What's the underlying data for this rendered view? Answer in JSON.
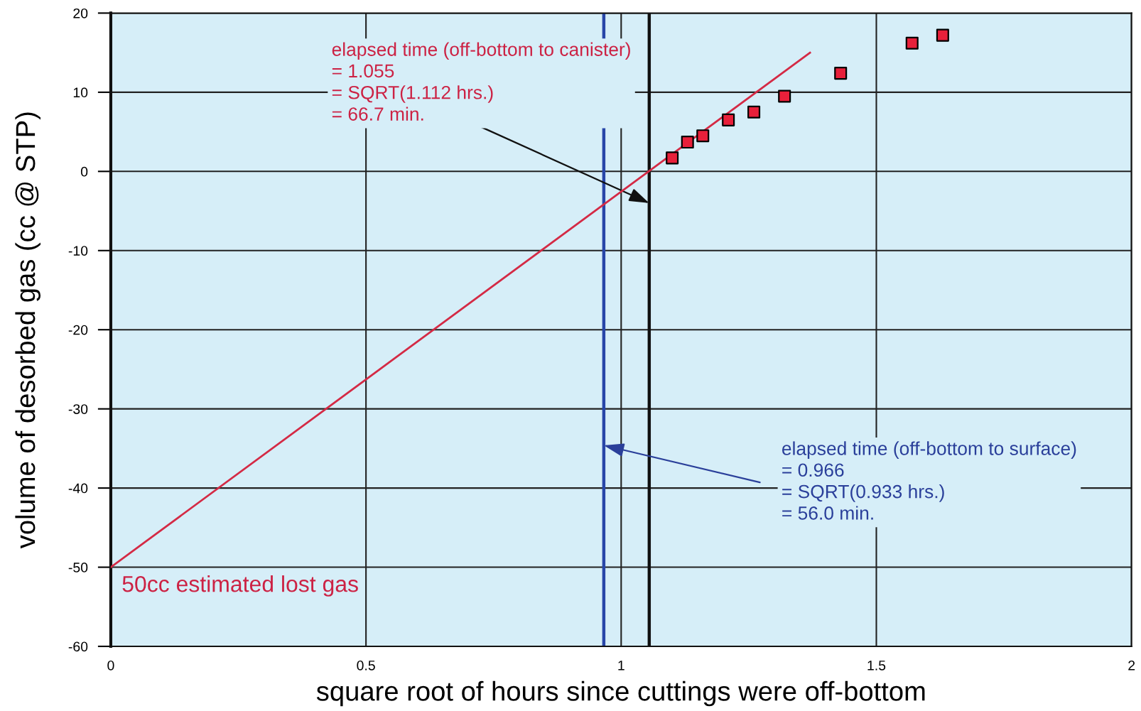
{
  "chart_data": {
    "type": "scatter",
    "xlabel": "square root of hours since cuttings were off-bottom",
    "ylabel": "volume of desorbed gas (cc @ STP)",
    "xlim": [
      0,
      2
    ],
    "ylim": [
      -60,
      20
    ],
    "xticks": [
      0,
      0.5,
      1,
      1.5,
      2
    ],
    "yticks": [
      -60,
      -50,
      -40,
      -30,
      -20,
      -10,
      0,
      10,
      20
    ],
    "grid": true,
    "line_style": "solid",
    "series": [
      {
        "color": "#e8203a",
        "marker": "square",
        "x": [
          1.1,
          1.13,
          1.16,
          1.21,
          1.26,
          1.32,
          1.43,
          1.57,
          1.63
        ],
        "values": [
          1.7,
          3.7,
          4.5,
          6.5,
          7.5,
          9.5,
          12.4,
          16.2,
          17.2
        ]
      },
      {
        "type": "line",
        "color": "#d42a45",
        "x": [
          0,
          1.37
        ],
        "values": [
          -50,
          15
        ]
      }
    ],
    "ref_lines": [
      {
        "axis": "x",
        "value": 0.966,
        "color": "#2846a8"
      },
      {
        "axis": "x",
        "value": 1.055,
        "color": "#111111"
      }
    ],
    "annotations": [
      {
        "text": "elapsed time (off-bottom to canister)\n= 1.055\n= SQRT(1.112 hrs.)\n= 66.7 min.",
        "x": 1.055,
        "y": -4
      },
      {
        "text": "elapsed time (off-bottom to surface)\n= 0.966\n= SQRT(0.933 hrs.)\n= 56.0 min.",
        "x": 0.966,
        "y": -34.6
      },
      {
        "text": "50cc estimated lost gas",
        "x": 0,
        "y": -50
      }
    ]
  }
}
